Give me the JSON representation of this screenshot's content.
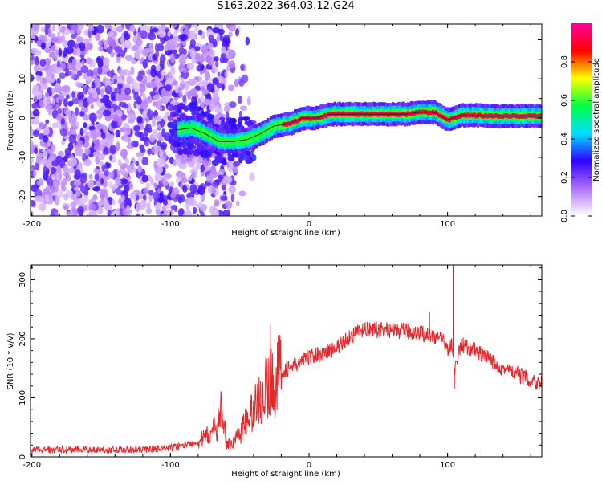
{
  "title": "S163.2022.364.03.12.G24",
  "chart_data": [
    {
      "type": "heatmap",
      "xlabel": "Height of straight line (km)",
      "ylabel": "Frequency (Hz)",
      "xlim": [
        -201,
        168
      ],
      "ylim": [
        -25,
        24
      ],
      "x_ticks": [
        -200,
        -100,
        0,
        100
      ],
      "y_ticks": [
        -20,
        -10,
        0,
        10,
        20
      ],
      "colorbar": {
        "label": "Normalized spectral amplitude",
        "range": [
          0,
          1
        ],
        "ticks": [
          0.0,
          0.2,
          0.4,
          0.6,
          0.8
        ],
        "tick_labels": [
          "0.0",
          "0.2",
          "0.4",
          "0.6",
          "0.8"
        ],
        "colors": [
          "#ffffff",
          "#b070ff",
          "#3000ff",
          "#00e0ff",
          "#00ff40",
          "#ffff00",
          "#ff0000",
          "#ff00a0"
        ]
      },
      "reference_line": {
        "x": [
          -95,
          -85,
          -75,
          -65,
          -55,
          -45,
          -35,
          -25,
          -15,
          -5,
          5,
          15,
          30,
          50,
          70,
          80,
          90,
          100,
          110,
          130,
          150,
          168
        ],
        "y": [
          -3.0,
          -2.5,
          -4.0,
          -6.0,
          -6.0,
          -5.5,
          -4.0,
          -2.0,
          -1.5,
          0.0,
          0.0,
          1.0,
          1.0,
          1.0,
          1.0,
          1.5,
          1.5,
          -0.5,
          0.8,
          0.5,
          0.5,
          0.5
        ]
      }
    },
    {
      "type": "line",
      "xlabel": "Height of straight line (km)",
      "ylabel": "SNR (10 * v/v)",
      "xlim": [
        -201,
        168
      ],
      "ylim": [
        0,
        325
      ],
      "x_ticks": [
        -200,
        -100,
        0,
        100
      ],
      "y_ticks": [
        0,
        100,
        200,
        300
      ],
      "color": "#e8262a",
      "envelope": {
        "x": [
          -201,
          -150,
          -120,
          -100,
          -80,
          -70,
          -65,
          -62,
          -60,
          -55,
          -50,
          -45,
          -40,
          -35,
          -30,
          -25,
          -20,
          -10,
          0,
          10,
          20,
          25,
          30,
          40,
          60,
          80,
          90,
          95,
          100,
          103,
          105,
          110,
          120,
          140,
          160,
          168
        ],
        "y": [
          12,
          12,
          12,
          15,
          25,
          40,
          60,
          90,
          20,
          25,
          40,
          60,
          80,
          100,
          120,
          130,
          145,
          155,
          170,
          175,
          185,
          195,
          205,
          215,
          215,
          210,
          205,
          200,
          185,
          190,
          150,
          190,
          180,
          150,
          130,
          125
        ]
      },
      "spikes": [
        {
          "x": -63,
          "y": 92
        },
        {
          "x": -35,
          "y": 128
        },
        {
          "x": -28,
          "y": 225
        },
        {
          "x": -22,
          "y": 200
        },
        {
          "x": 87,
          "y": 245
        },
        {
          "x": 104,
          "y": 325
        },
        {
          "x": 105,
          "y": 115
        }
      ]
    }
  ]
}
